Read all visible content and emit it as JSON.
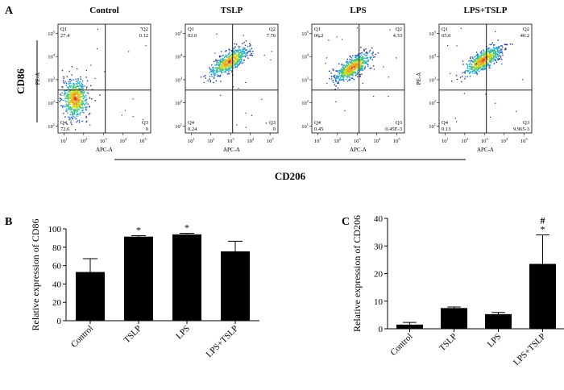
{
  "panel_labels": [
    "A",
    "B",
    "C"
  ],
  "flow": {
    "conditions": [
      "Control",
      "TSLP",
      "LPS",
      "LPS+TSLP"
    ],
    "y_group_label": "CD86",
    "x_group_label": "CD206",
    "x_channel": "APC-A",
    "y_channel": "PE-A",
    "tick_labels": [
      "10^1",
      "10^2",
      "10^3",
      "10^4",
      "10^5"
    ],
    "quadrant_names": [
      "Q1",
      "Q2",
      "Q3",
      "Q4"
    ],
    "quadrant_values": [
      [
        "27.4",
        "0.12",
        "0",
        "72.6"
      ],
      [
        "02.0",
        "7.76",
        "0",
        "0.24"
      ],
      [
        "06.2",
        "4.33",
        "0.45E-3",
        "0.45"
      ],
      [
        "65.6",
        "40.2",
        "9.965-3",
        "0.13"
      ]
    ],
    "population_center": [
      [
        1.55,
        2.2
      ],
      [
        2.9,
        3.8
      ],
      [
        2.75,
        3.55
      ],
      [
        2.9,
        3.85
      ]
    ]
  },
  "chart_data": [
    {
      "type": "bar",
      "panel": "B",
      "categories": [
        "Control",
        "TSLP",
        "LPS",
        "LPS+TSLP"
      ],
      "values": [
        53,
        91.5,
        94,
        75.5
      ],
      "errors": [
        14.5,
        1,
        1.2,
        11
      ],
      "significance": [
        "",
        "*",
        "*",
        ""
      ],
      "ylabel": "Relative expression of CD86",
      "xlabel": "",
      "ylim": [
        0,
        100
      ],
      "yticks": [
        0,
        20,
        40,
        60,
        80,
        100
      ],
      "bar_color": "#000000"
    },
    {
      "type": "bar",
      "panel": "C",
      "categories": [
        "Control",
        "TSLP",
        "LPS",
        "LPS+TSLP"
      ],
      "values": [
        1.5,
        7.5,
        5.3,
        23.5
      ],
      "errors": [
        0.8,
        0.4,
        0.6,
        10.5
      ],
      "significance": [
        "",
        "",
        "",
        "*"
      ],
      "significance2": [
        "",
        "",
        "",
        "#"
      ],
      "ylabel": "Relative expression of CD206",
      "xlabel": "",
      "ylim": [
        0,
        40
      ],
      "yticks": [
        0,
        10,
        20,
        30,
        40
      ],
      "bar_color": "#000000"
    }
  ]
}
